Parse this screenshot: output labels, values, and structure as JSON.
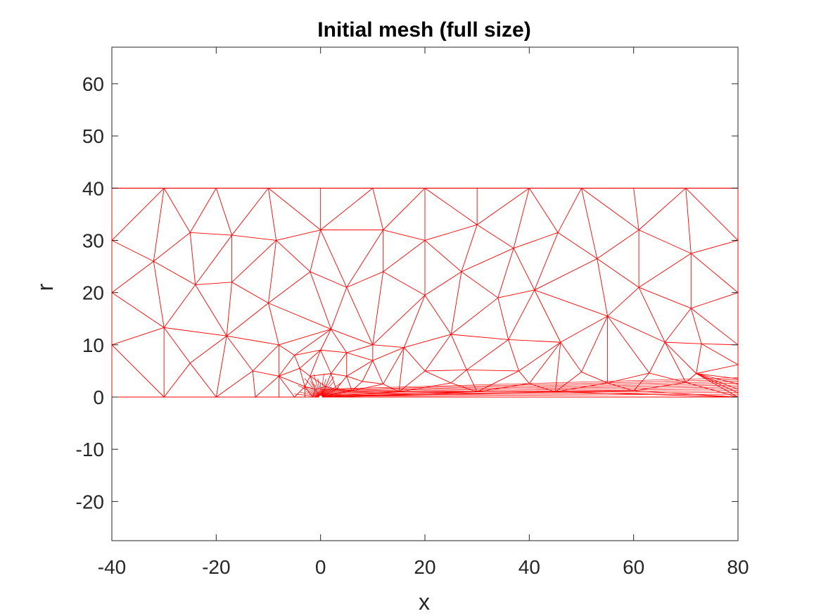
{
  "chart_data": {
    "type": "mesh",
    "title": "Initial mesh (full size)",
    "xlabel": "x",
    "ylabel": "r",
    "xlim": [
      -40,
      80
    ],
    "ylim": [
      -27.5,
      67
    ],
    "x_ticks": [
      -40,
      -20,
      0,
      20,
      40,
      60,
      80
    ],
    "y_ticks": [
      -20,
      -10,
      0,
      10,
      20,
      30,
      40,
      50,
      60
    ],
    "grid": false,
    "legend": "none",
    "colors": {
      "mesh": "#ff0000",
      "axes": "#262626",
      "background": "#ffffff"
    },
    "domain": {
      "x": [
        -40,
        80
      ],
      "r": [
        0,
        40
      ]
    },
    "nodes": [
      [
        -40,
        0
      ],
      [
        -30,
        0
      ],
      [
        -20,
        0
      ],
      [
        -12.5,
        0
      ],
      [
        -8,
        0
      ],
      [
        -5,
        0
      ],
      [
        -3,
        0
      ],
      [
        -1.5,
        0
      ],
      [
        0,
        0
      ],
      [
        80,
        0
      ],
      [
        -40,
        40
      ],
      [
        -30,
        40
      ],
      [
        -20,
        40
      ],
      [
        -10,
        40
      ],
      [
        0,
        40
      ],
      [
        10,
        40
      ],
      [
        20,
        40
      ],
      [
        30,
        40
      ],
      [
        40,
        40
      ],
      [
        50,
        40
      ],
      [
        60,
        40
      ],
      [
        70,
        40
      ],
      [
        80,
        40
      ],
      [
        -40,
        30
      ],
      [
        -40,
        20
      ],
      [
        -40,
        10
      ],
      [
        80,
        30
      ],
      [
        80,
        20
      ],
      [
        80,
        10
      ],
      [
        -25,
        31.5
      ],
      [
        -17,
        31
      ],
      [
        -8.5,
        30
      ],
      [
        0,
        32
      ],
      [
        12,
        32
      ],
      [
        20,
        30
      ],
      [
        30,
        33
      ],
      [
        37,
        28.5
      ],
      [
        45.5,
        31.5
      ],
      [
        61,
        32
      ],
      [
        71,
        27.5
      ],
      [
        -32,
        26
      ],
      [
        -24,
        21.5
      ],
      [
        -17,
        22
      ],
      [
        -10,
        18
      ],
      [
        -2,
        24
      ],
      [
        5,
        21
      ],
      [
        12,
        24
      ],
      [
        20,
        19.5
      ],
      [
        27,
        24
      ],
      [
        34,
        19
      ],
      [
        41,
        20.5
      ],
      [
        53,
        26.5
      ],
      [
        61,
        21
      ],
      [
        71,
        17
      ],
      [
        -30,
        13.3
      ],
      [
        -18,
        11.7
      ],
      [
        -8,
        10
      ],
      [
        2,
        13
      ],
      [
        10,
        10
      ],
      [
        16,
        9.5
      ],
      [
        25,
        12
      ],
      [
        36,
        11
      ],
      [
        46,
        10.5
      ],
      [
        55,
        15.5
      ],
      [
        66,
        10.5
      ],
      [
        73,
        10.2
      ],
      [
        -25,
        6.5
      ],
      [
        -13,
        5
      ],
      [
        -5,
        8
      ],
      [
        0,
        9
      ],
      [
        5,
        8.5
      ],
      [
        10,
        7
      ],
      [
        20,
        5
      ],
      [
        28,
        5.2
      ],
      [
        38,
        5
      ],
      [
        50,
        4.8
      ],
      [
        63,
        4.6
      ],
      [
        72,
        4.5
      ],
      [
        80,
        6.2
      ],
      [
        -8,
        4
      ],
      [
        -4,
        5.5
      ],
      [
        -2,
        4
      ],
      [
        2,
        4.5
      ],
      [
        5,
        4
      ],
      [
        8,
        3
      ],
      [
        12,
        2.5
      ],
      [
        25,
        2.7
      ],
      [
        40,
        2.6
      ],
      [
        55,
        2.7
      ],
      [
        70,
        2.8
      ],
      [
        80,
        3.5
      ],
      [
        80,
        2.5
      ],
      [
        80,
        1.5
      ],
      [
        -3,
        2
      ],
      [
        -1,
        1.5
      ],
      [
        1,
        2
      ],
      [
        3,
        1.5
      ],
      [
        6,
        1.2
      ],
      [
        15,
        1
      ],
      [
        30,
        1
      ],
      [
        45,
        1
      ],
      [
        60,
        1.2
      ],
      [
        80,
        0.8
      ]
    ],
    "cluster_point": [
      0,
      0
    ]
  }
}
